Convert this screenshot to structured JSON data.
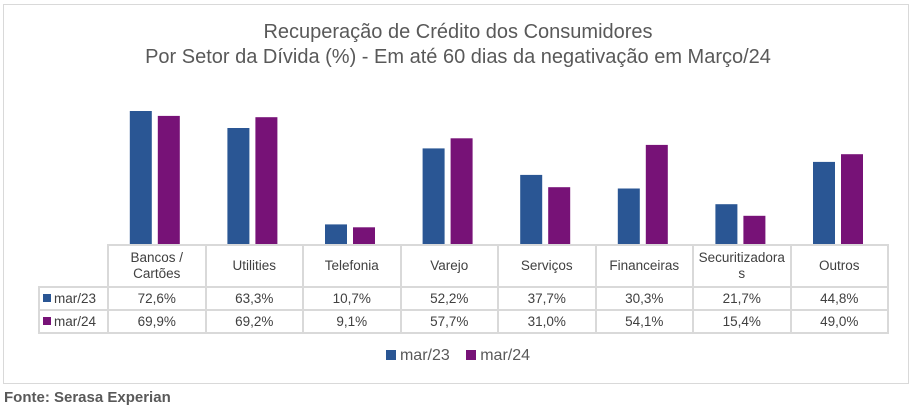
{
  "chart_data": {
    "type": "bar",
    "title": "Recuperação de Crédito dos Consumidores",
    "subtitle": "Por Setor da Dívida (%) - Em até 60 dias da negativação em Março/24",
    "categories": [
      "Bancos / Cartões",
      "Utilities",
      "Telefonia",
      "Varejo",
      "Serviços",
      "Financeiras",
      "Securitizadoras",
      "Outros"
    ],
    "category_labels_display": [
      "Bancos /\nCartões",
      "Utilities",
      "Telefonia",
      "Varejo",
      "Serviços",
      "Financeiras",
      "Securitizadora\ns",
      "Outros"
    ],
    "series": [
      {
        "name": "mar/23",
        "color": "#2A5694",
        "values": [
          72.6,
          63.3,
          10.7,
          52.2,
          37.7,
          30.3,
          21.7,
          44.8
        ],
        "labels": [
          "72,6%",
          "63,3%",
          "10,7%",
          "52,2%",
          "37,7%",
          "30,3%",
          "21,7%",
          "44,8%"
        ]
      },
      {
        "name": "mar/24",
        "color": "#771277",
        "values": [
          69.9,
          69.2,
          9.1,
          57.7,
          31.0,
          54.1,
          15.4,
          49.0
        ],
        "labels": [
          "69,9%",
          "69,2%",
          "9,1%",
          "57,7%",
          "31,0%",
          "54,1%",
          "15,4%",
          "49,0%"
        ]
      }
    ],
    "xlabel": "",
    "ylabel": "",
    "ylim": [
      0,
      80
    ],
    "grid": false,
    "legend": "bottom",
    "data_table": true
  },
  "source": "Fonte: Serasa Experian"
}
